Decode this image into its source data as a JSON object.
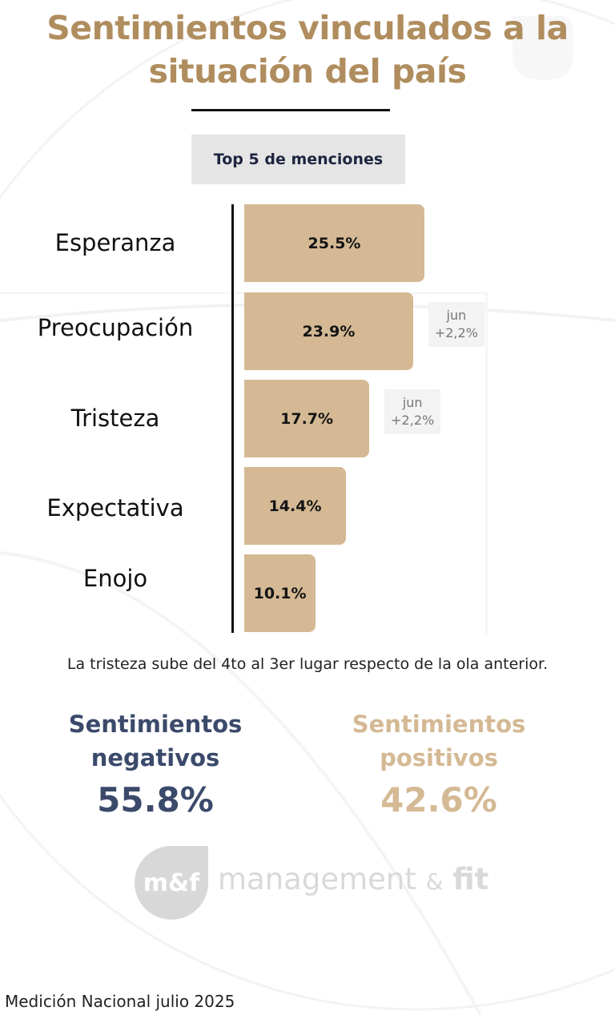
{
  "header": {
    "title_line1": "Sentimientos vinculados a la",
    "title_line2": "situación del país",
    "subtitle": "Top 5 de menciones"
  },
  "chart_data": {
    "type": "bar",
    "orientation": "horizontal",
    "title": "Sentimientos vinculados a la situación del país",
    "subtitle": "Top 5 de menciones",
    "categories": [
      "Esperanza",
      "Preocupación",
      "Tristeza",
      "Expectativa",
      "Enojo"
    ],
    "values": [
      25.5,
      23.9,
      17.7,
      14.4,
      10.1
    ],
    "value_labels": [
      "25.5%",
      "23.9%",
      "17.7%",
      "14.4%",
      "10.1%"
    ],
    "unit": "%",
    "xlabel": "",
    "ylabel": "",
    "grid": false,
    "bar_color": "#d4b994",
    "annotations": [
      {
        "category": "Preocupación",
        "line1": "jun",
        "line2": "+2,2%"
      },
      {
        "category": "Tristeza",
        "line1": "jun",
        "line2": "+2,2%"
      }
    ]
  },
  "caption": "La tristeza sube del 4to al 3er lugar respecto de la ola anterior.",
  "summary": {
    "negative": {
      "label_line1": "Sentimientos",
      "label_line2": "negativos",
      "value": "55.8%",
      "color": "#3b4a6b"
    },
    "positive": {
      "label_line1": "Sentimientos",
      "label_line2": "positivos",
      "value": "42.6%",
      "color": "#d4b994"
    }
  },
  "logo": {
    "mark": "m&f",
    "word1": "management",
    "amp": "&",
    "word2": "fit"
  },
  "footer": "Medición Nacional julio 2025"
}
